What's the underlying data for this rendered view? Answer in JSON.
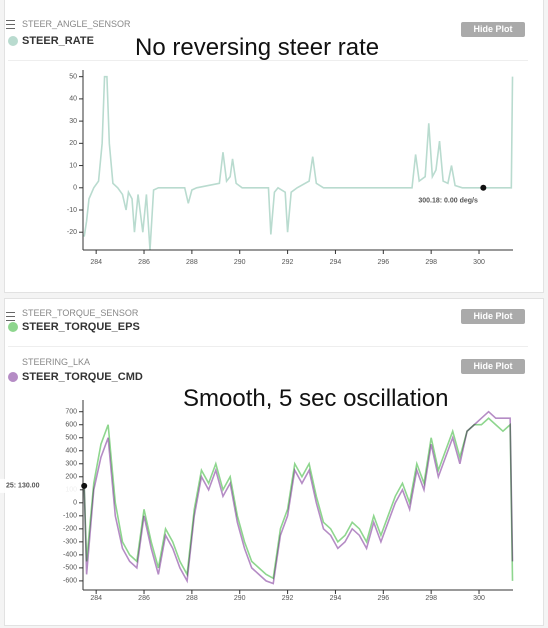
{
  "chart_data": [
    {
      "type": "line",
      "annotation": "No reversing steer rate",
      "xlim": [
        283.45,
        301.42
      ],
      "ylim": [
        -28,
        53
      ],
      "xticks": [
        284,
        286,
        288,
        290,
        292,
        294,
        296,
        298,
        300
      ],
      "yticks": [
        50,
        40,
        30,
        20,
        10,
        0,
        -10,
        -20
      ],
      "x": [
        283.5,
        283.6,
        283.7,
        283.9,
        284.1,
        284.25,
        284.35,
        284.45,
        284.55,
        284.7,
        284.9,
        285.1,
        285.25,
        285.35,
        285.5,
        285.6,
        285.75,
        285.95,
        286.1,
        286.25,
        286.4,
        286.6,
        287.7,
        287.85,
        288.0,
        288.2,
        289.15,
        289.3,
        289.45,
        289.6,
        289.7,
        289.85,
        290.1,
        291.2,
        291.3,
        291.45,
        291.6,
        291.9,
        292.0,
        292.15,
        292.4,
        292.9,
        293.05,
        293.2,
        293.5,
        297.2,
        297.35,
        297.5,
        297.75,
        297.9,
        298.05,
        298.2,
        298.35,
        298.5,
        298.7,
        298.85,
        299.0,
        299.3,
        301.35,
        301.4
      ],
      "series": [
        {
          "message": "STEER_ANGLE_SENSOR",
          "name": "STEER_RATE",
          "color": "#b9dbcf",
          "button": "Hide Plot",
          "values": [
            -22,
            -15,
            -5,
            0,
            3,
            20,
            50,
            50,
            20,
            2,
            0,
            -3,
            -10,
            -2,
            -5,
            -20,
            -3,
            -20,
            -3,
            -28,
            -1,
            0,
            0,
            -7,
            -1,
            0,
            2,
            16,
            3,
            5,
            13,
            2,
            0,
            0,
            -21,
            -2,
            0,
            -2,
            -20,
            -2,
            0,
            3,
            14,
            2,
            0,
            0,
            15,
            3,
            5,
            29,
            5,
            8,
            21,
            3,
            2,
            10,
            1,
            0,
            0,
            50
          ]
        }
      ],
      "cursor": {
        "x": 300.18,
        "y": 0,
        "label": "300.18: 0.00 deg/s"
      }
    },
    {
      "type": "line",
      "annotation": "Smooth, 5 sec oscillation",
      "xlim": [
        283.45,
        301.42
      ],
      "ylim": [
        -670,
        790
      ],
      "xticks": [
        284,
        286,
        288,
        290,
        292,
        294,
        296,
        298,
        300
      ],
      "yticks": [
        700,
        600,
        500,
        400,
        300,
        200,
        100,
        0,
        -100,
        -200,
        -300,
        -400,
        -500,
        -600
      ],
      "x": [
        283.5,
        283.6,
        283.9,
        284.2,
        284.5,
        284.8,
        285.1,
        285.4,
        285.7,
        286.0,
        286.3,
        286.6,
        286.9,
        287.2,
        287.5,
        287.8,
        288.1,
        288.4,
        288.7,
        289.0,
        289.3,
        289.6,
        289.9,
        290.2,
        290.5,
        290.8,
        291.1,
        291.4,
        291.7,
        292.0,
        292.3,
        292.6,
        292.9,
        293.2,
        293.5,
        293.8,
        294.1,
        294.4,
        294.7,
        295.0,
        295.3,
        295.6,
        295.9,
        296.2,
        296.5,
        296.8,
        297.1,
        297.4,
        297.7,
        298.0,
        298.3,
        298.6,
        298.9,
        299.2,
        299.5,
        299.8,
        300.1,
        300.4,
        300.7,
        301.0,
        301.3,
        301.4
      ],
      "series": [
        {
          "message": "STEER_TORQUE_SENSOR",
          "name": "STEER_TORQUE_EPS",
          "color": "#8ed68e",
          "button": "Hide Plot",
          "values": [
            130,
            -450,
            150,
            450,
            600,
            0,
            -300,
            -400,
            -450,
            -50,
            -300,
            -500,
            -200,
            -300,
            -450,
            -550,
            -50,
            250,
            150,
            300,
            100,
            200,
            -100,
            -300,
            -450,
            -500,
            -550,
            -580,
            -200,
            -50,
            300,
            200,
            300,
            50,
            -150,
            -200,
            -300,
            -250,
            -150,
            -200,
            -300,
            -100,
            -250,
            -100,
            50,
            150,
            0,
            300,
            150,
            500,
            250,
            400,
            550,
            350,
            550,
            600,
            600,
            650,
            600,
            550,
            600,
            -600
          ]
        },
        {
          "message": "STEERING_LKA",
          "name": "STEER_TORQUE_CMD",
          "color": "#b58cc5",
          "button": "Hide Plot",
          "values": [
            130,
            -550,
            100,
            350,
            500,
            -100,
            -350,
            -450,
            -500,
            -100,
            -350,
            -550,
            -250,
            -350,
            -500,
            -600,
            -100,
            200,
            100,
            250,
            50,
            150,
            -150,
            -350,
            -500,
            -550,
            -600,
            -620,
            -250,
            -100,
            250,
            150,
            250,
            0,
            -200,
            -250,
            -350,
            -300,
            -200,
            -250,
            -350,
            -150,
            -300,
            -150,
            0,
            100,
            -50,
            250,
            100,
            450,
            200,
            350,
            500,
            300,
            550,
            600,
            650,
            700,
            650,
            650,
            650,
            -450
          ]
        }
      ],
      "cursor": {
        "x": 283.5,
        "y": 130,
        "label": "25: 130.00"
      }
    }
  ]
}
